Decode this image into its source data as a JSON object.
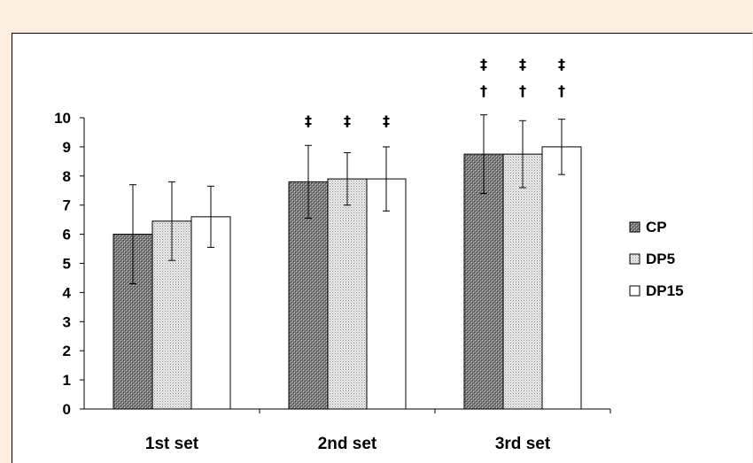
{
  "chart_data": {
    "type": "bar",
    "title": "",
    "xlabel": "",
    "ylabel": "",
    "ylim": [
      0,
      10
    ],
    "yticks": [
      "0",
      "1",
      "2",
      "3",
      "4",
      "5",
      "6",
      "7",
      "8",
      "9",
      "10"
    ],
    "categories": [
      "1st set",
      "2nd set",
      "3rd set"
    ],
    "series": [
      {
        "name": "CP",
        "pattern": "dark-crosshatch",
        "values": [
          6.0,
          7.8,
          8.75
        ],
        "error": [
          1.7,
          1.25,
          1.35
        ]
      },
      {
        "name": "DP5",
        "pattern": "light-dotted",
        "values": [
          6.45,
          7.9,
          8.75
        ],
        "error": [
          1.35,
          0.9,
          1.15
        ]
      },
      {
        "name": "DP15",
        "pattern": "white",
        "values": [
          6.6,
          7.9,
          9.0
        ],
        "error": [
          1.05,
          1.1,
          0.95
        ]
      }
    ],
    "significance_markers": [
      {
        "category": "2nd set",
        "series": "CP",
        "symbols": [
          "‡"
        ]
      },
      {
        "category": "2nd set",
        "series": "DP5",
        "symbols": [
          "‡"
        ]
      },
      {
        "category": "2nd set",
        "series": "DP15",
        "symbols": [
          "‡"
        ]
      },
      {
        "category": "3rd set",
        "series": "CP",
        "symbols": [
          "‡",
          "†"
        ]
      },
      {
        "category": "3rd set",
        "series": "DP5",
        "symbols": [
          "‡",
          "†"
        ]
      },
      {
        "category": "3rd set",
        "series": "DP15",
        "symbols": [
          "‡",
          "†"
        ]
      }
    ],
    "legend": {
      "placement": "right",
      "entries": [
        "CP",
        "DP5",
        "DP15"
      ]
    },
    "grid": false,
    "colors": {
      "page_background": "#fcefe1",
      "plot_background": "#ffffff",
      "axis": "#000000"
    }
  }
}
